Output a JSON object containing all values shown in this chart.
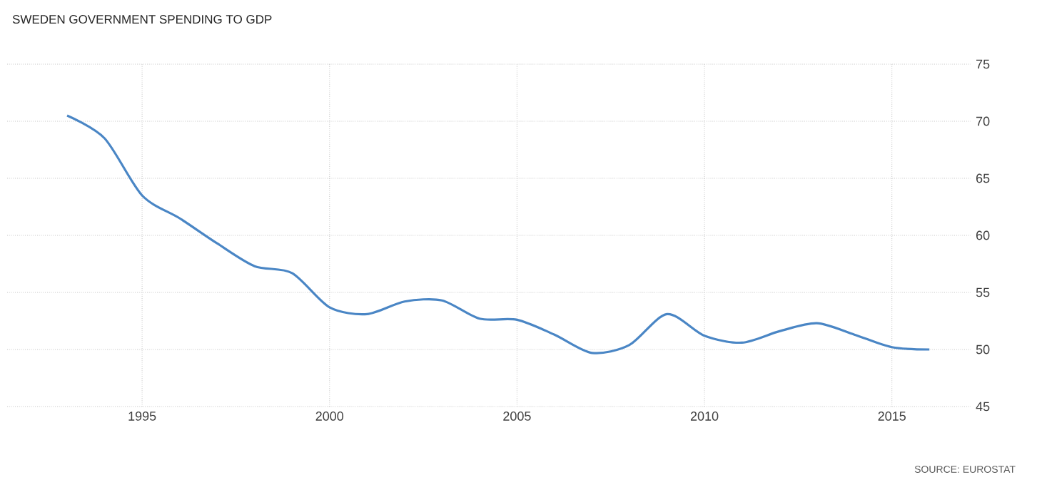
{
  "chart_data": {
    "type": "line",
    "title": "SWEDEN GOVERNMENT SPENDING TO GDP",
    "x": [
      1993,
      1994,
      1995,
      1996,
      1997,
      1998,
      1999,
      2000,
      2001,
      2002,
      2003,
      2004,
      2005,
      2006,
      2007,
      2008,
      2009,
      2010,
      2011,
      2012,
      2013,
      2014,
      2015,
      2016
    ],
    "series": [
      {
        "color": "#4a86c5",
        "values": [
          70.5,
          68.5,
          63.5,
          61.5,
          59.3,
          57.3,
          56.7,
          53.7,
          53.1,
          54.2,
          54.3,
          52.7,
          52.6,
          51.3,
          49.7,
          50.4,
          53.1,
          51.2,
          50.6,
          51.6,
          52.3,
          51.3,
          50.2,
          50.0
        ]
      }
    ],
    "xlim": [
      1991.4,
      2017.1
    ],
    "ylim": [
      45,
      75
    ],
    "xticks": [
      1995,
      2000,
      2005,
      2010,
      2015
    ],
    "yticks": [
      45,
      50,
      55,
      60,
      65,
      70,
      75
    ],
    "grid": true,
    "marker": "none",
    "line_style": "solid",
    "annotations": [
      "SOURCE: EUROSTAT"
    ]
  }
}
